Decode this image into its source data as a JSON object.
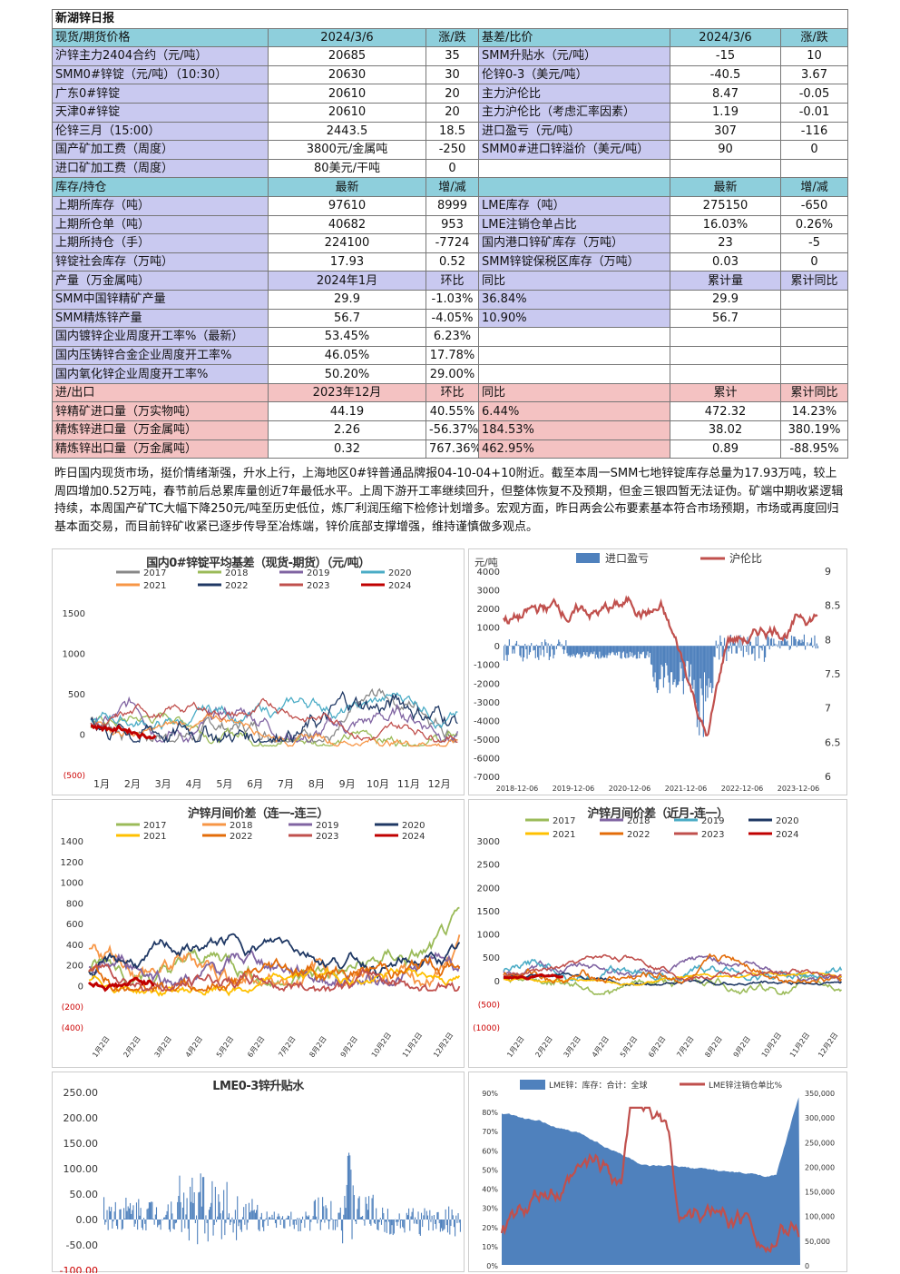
{
  "title": "新湖锌日报",
  "spot": {
    "header": [
      "现货/期货价格",
      "2024/3/6",
      "涨/跌",
      "基差/比价",
      "2024/3/6",
      "涨/跌"
    ],
    "rows": [
      [
        "沪锌主力2404合约（元/吨）",
        "20685",
        "35",
        "SMM升贴水（元/吨）",
        "-15",
        "10"
      ],
      [
        "SMM0#锌锭（元/吨）（10:30）",
        "20630",
        "30",
        "伦锌0-3（美元/吨）",
        "-40.5",
        "3.67"
      ],
      [
        "广东0#锌锭",
        "20610",
        "20",
        "主力沪伦比",
        "8.47",
        "-0.05"
      ],
      [
        "天津0#锌锭",
        "20610",
        "20",
        "主力沪伦比（考虑汇率因素）",
        "1.19",
        "-0.01"
      ],
      [
        "伦锌三月（15:00）",
        "2443.5",
        "18.5",
        "进口盈亏（元/吨）",
        "307",
        "-116"
      ],
      [
        "国产矿加工费（周度）",
        "3800元/金属吨",
        "-250",
        "SMM0#进口锌溢价（美元/吨）",
        "90",
        "0"
      ],
      [
        "进口矿加工费（周度）",
        "80美元/干吨",
        "0",
        "",
        "",
        ""
      ]
    ]
  },
  "stock": {
    "header": [
      "库存/持仓",
      "最新",
      "增/减",
      "",
      "最新",
      "增/减"
    ],
    "rows": [
      [
        "上期所库存（吨）",
        "97610",
        "8999",
        "LME库存（吨）",
        "275150",
        "-650"
      ],
      [
        "上期所仓单（吨）",
        "40682",
        "953",
        "LME注销仓单占比",
        "16.03%",
        "0.26%"
      ],
      [
        "上期所持仓（手）",
        "224100",
        "-7724",
        "国内港口锌矿库存（万吨）",
        "23",
        "-5"
      ],
      [
        "锌锭社会库存（万吨）",
        "17.93",
        "0.52",
        "SMM锌锭保税区库存（万吨）",
        "0.03",
        "0"
      ]
    ]
  },
  "prod": {
    "header": [
      "产量（万金属吨）",
      "2024年1月",
      "环比",
      "同比",
      "累计量",
      "累计同比"
    ],
    "rows": [
      [
        "SMM中国锌精矿产量",
        "29.9",
        "-1.03%",
        "36.84%",
        "29.9",
        ""
      ],
      [
        "SMM精炼锌产量",
        "56.7",
        "-4.05%",
        "10.90%",
        "56.7",
        ""
      ],
      [
        "国内镀锌企业周度开工率%（最新）",
        "53.45%",
        "6.23%",
        "",
        "",
        ""
      ],
      [
        "国内压铸锌合金企业周度开工率%",
        "46.05%",
        "17.78%",
        "",
        "",
        ""
      ],
      [
        "国内氧化锌企业周度开工率%",
        "50.20%",
        "29.00%",
        "",
        "",
        ""
      ]
    ]
  },
  "trade": {
    "header": [
      "进/出口",
      "2023年12月",
      "环比",
      "同比",
      "累计",
      "累计同比"
    ],
    "rows": [
      [
        "锌精矿进口量（万实物吨）",
        "44.19",
        "40.55%",
        "6.44%",
        "472.32",
        "14.23%"
      ],
      [
        "精炼锌进口量（万金属吨）",
        "2.26",
        "-56.37%",
        "184.53%",
        "38.02",
        "380.19%"
      ],
      [
        "精炼锌出口量（万金属吨）",
        "0.32",
        "767.36%",
        "462.95%",
        "0.89",
        "-88.95%"
      ]
    ]
  },
  "note": "昨日国内现货市场，挺价情绪渐强，升水上行，上海地区0#锌普通品牌报04-10-04+10附近。截至本周一SMM七地锌锭库存总量为17.93万吨，较上周四增加0.52万吨，春节前后总累库量创近7年最低水平。上周下游开工率继续回升，但整体恢复不及预期，但金三银四暂无法证伪。矿端中期收紧逻辑持续，本周国产矿TC大幅下降250元/吨至历史低位，炼厂利润压缩下检修计划增多。宏观方面，昨日两会公布要素基本符合市场预期，市场或再度回归基本面交易，而目前锌矿收紧已逐步传导至冶炼端，锌价底部支撑增强，维持谨慎做多观点。",
  "charts": {
    "c1": {
      "title": "国内0#锌锭平均基差（现货-期货）（元/吨）",
      "legend": [
        "2017",
        "2018",
        "2019",
        "2020",
        "2021",
        "2022",
        "2023",
        "2024"
      ],
      "colors": [
        "#888888",
        "#9bbb59",
        "#8064a2",
        "#4bacc6",
        "#f79646",
        "#1f3864",
        "#c0504d",
        "#c00000"
      ],
      "yticks": [
        "1500",
        "1000",
        "500",
        "0",
        "(500)"
      ],
      "xticks": [
        "1月",
        "2月",
        "3月",
        "4月",
        "5月",
        "6月",
        "7月",
        "8月",
        "9月",
        "10月",
        "11月",
        "12月"
      ]
    },
    "c2": {
      "ylabel": "元/吨",
      "legend": [
        "进口盈亏",
        "沪伦比"
      ],
      "colors": [
        "#4f81bd",
        "#c0504d"
      ],
      "yticks": [
        "4000",
        "3000",
        "2000",
        "1000",
        "0",
        "-1000",
        "-2000",
        "-3000",
        "-4000",
        "-5000",
        "-6000",
        "-7000"
      ],
      "y2ticks": [
        "9",
        "8.5",
        "8",
        "7.5",
        "7",
        "6.5",
        "6"
      ],
      "xticks": [
        "2018-12-06",
        "2019-12-06",
        "2020-12-06",
        "2021-12-06",
        "2022-12-06",
        "2023-12-06"
      ]
    },
    "c3": {
      "title": "沪锌月间价差（连一-连三）",
      "legend": [
        "2017",
        "2018",
        "2019",
        "2020",
        "2021",
        "2022",
        "2023",
        "2024"
      ],
      "colors": [
        "#9bbb59",
        "#f79646",
        "#8064a2",
        "#1f3864",
        "#ffc000",
        "#e36c09",
        "#c0504d",
        "#c00000"
      ],
      "yticks": [
        "1400",
        "1200",
        "1000",
        "800",
        "600",
        "400",
        "200",
        "0",
        "(200)",
        "(400)"
      ],
      "xticks": [
        "1月2日",
        "2月2日",
        "3月2日",
        "4月2日",
        "5月2日",
        "6月2日",
        "7月2日",
        "8月2日",
        "9月2日",
        "10月2日",
        "11月2日",
        "12月2日"
      ]
    },
    "c4": {
      "title": "沪锌月间价差（近月-连一）",
      "legend": [
        "2017",
        "2018",
        "2019",
        "2020",
        "2021",
        "2022",
        "2023",
        "2024"
      ],
      "colors": [
        "#9bbb59",
        "#8064a2",
        "#4bacc6",
        "#1f3864",
        "#ffc000",
        "#e36c09",
        "#c0504d",
        "#c00000"
      ],
      "yticks": [
        "3000",
        "2500",
        "2000",
        "1500",
        "1000",
        "500",
        "0",
        "(500)",
        "(1000)"
      ],
      "xticks": [
        "1月2日",
        "2月2日",
        "3月2日",
        "4月2日",
        "5月2日",
        "6月2日",
        "7月2日",
        "8月2日",
        "9月2日",
        "10月2日",
        "11月2日",
        "12月2日"
      ]
    },
    "c5": {
      "title": "LME0-3锌升贴水",
      "yticks": [
        "250.00",
        "200.00",
        "150.00",
        "100.00",
        "50.00",
        "0.00",
        "-50.00",
        "-100.00"
      ],
      "color": "#4f81bd"
    },
    "c6": {
      "legend": [
        "LME锌：库存：合计：全球",
        "LME锌注销仓单比%"
      ],
      "colors": [
        "#4f81bd",
        "#c0504d"
      ],
      "yticks": [
        "90%",
        "80%",
        "70%",
        "60%",
        "50%",
        "40%",
        "30%",
        "20%",
        "10%",
        "0%"
      ],
      "y2ticks": [
        "350,000",
        "300,000",
        "250,000",
        "200,000",
        "150,000",
        "100,000",
        "50,000",
        "0"
      ]
    }
  }
}
